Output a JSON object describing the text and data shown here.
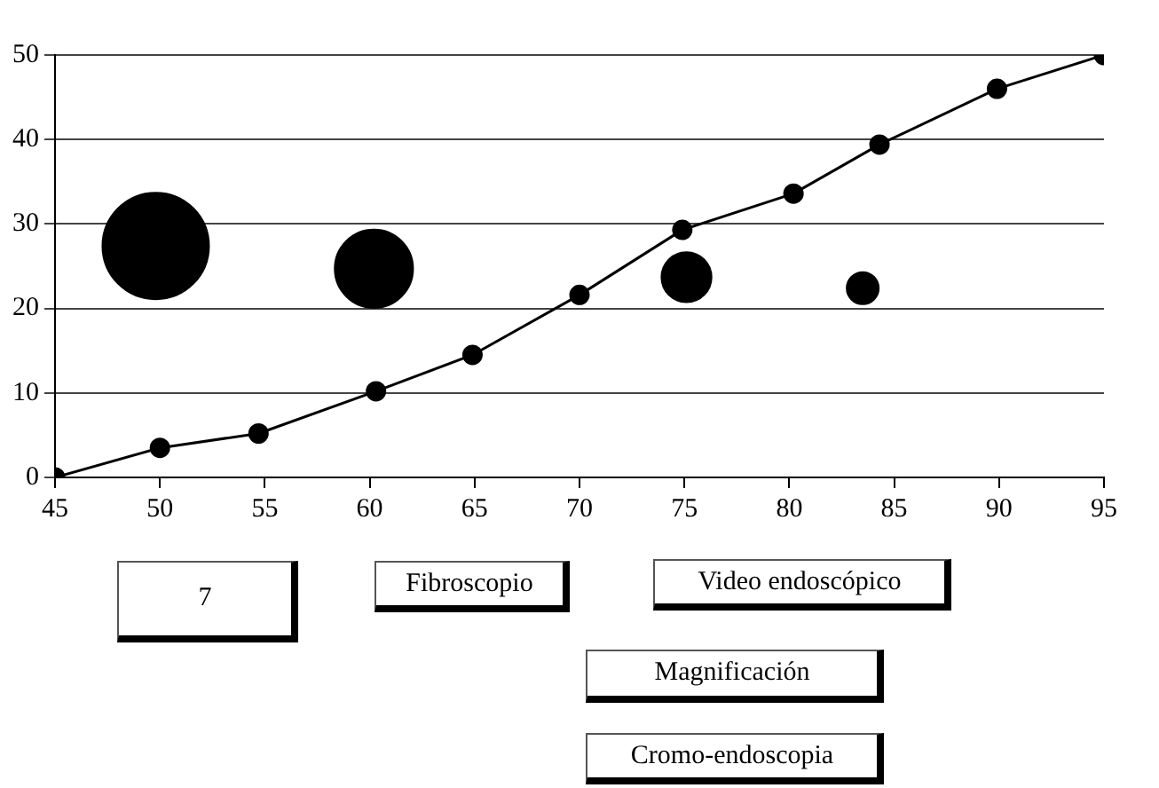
{
  "chart_data": {
    "type": "line",
    "x": [
      45,
      50,
      54.7,
      60.3,
      64.9,
      70,
      74.9,
      80.2,
      84.3,
      89.9,
      95
    ],
    "series": [
      {
        "type": "line",
        "color": "#000000",
        "values": [
          0,
          3.5,
          5.2,
          10.2,
          14.5,
          21.6,
          29.3,
          33.6,
          39.4,
          46,
          50
        ]
      },
      {
        "type": "bubble",
        "color": "#000000",
        "x": [
          49.8,
          60.2,
          75.1,
          83.5
        ],
        "values": [
          27.4,
          24.7,
          23.7,
          22.4
        ],
        "sizes": [
          1,
          0.54,
          0.22,
          0.09
        ]
      }
    ],
    "xlim": [
      45,
      95
    ],
    "xticks": [
      45,
      50,
      55,
      60,
      65,
      70,
      75,
      80,
      85,
      90,
      95
    ],
    "ylim": [
      0,
      50
    ],
    "yticks": [
      0,
      10,
      20,
      30,
      40,
      50
    ],
    "grid": "y",
    "legend": false,
    "marker": "circle",
    "line_style": "solid",
    "annotations": [
      "7",
      "Fibroscopio",
      "Video endoscópico",
      "Magnificación",
      "Cromo-endoscopia"
    ]
  }
}
